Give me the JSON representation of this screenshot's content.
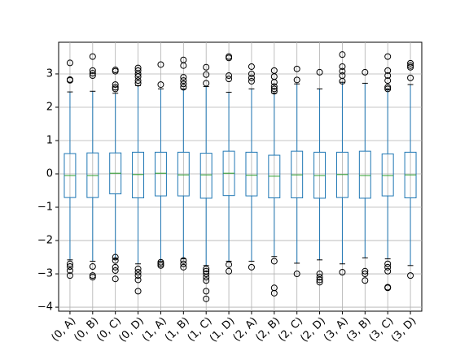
{
  "chart_data": {
    "type": "box",
    "box_color": "#1f77b4",
    "median_color": "#2ca02c",
    "grid": true,
    "categories": [
      "(0, A)",
      "(0, B)",
      "(0, C)",
      "(0, D)",
      "(1, A)",
      "(1, B)",
      "(1, C)",
      "(1, D)",
      "(2, A)",
      "(2, B)",
      "(2, C)",
      "(2, D)",
      "(3, A)",
      "(3, B)",
      "(3, C)",
      "(3, D)"
    ],
    "boxes": [
      {
        "whislo": -2.58,
        "q1": -0.71,
        "med": -0.05,
        "q3": 0.61,
        "whishi": 2.46,
        "fliers": [
          3.33,
          2.83,
          2.81,
          -2.7,
          -2.78,
          -2.9,
          -3.05
        ]
      },
      {
        "whislo": -2.62,
        "q1": -0.71,
        "med": -0.05,
        "q3": 0.63,
        "whishi": 2.48,
        "fliers": [
          3.52,
          3.1,
          3.02,
          2.95,
          -2.78,
          -3.05,
          -3.1
        ]
      },
      {
        "whislo": -2.55,
        "q1": -0.6,
        "med": 0.02,
        "q3": 0.63,
        "whishi": 2.42,
        "fliers": [
          3.12,
          3.08,
          2.68,
          2.6,
          2.55,
          -2.5,
          -2.6,
          -2.8,
          -2.9,
          -3.15
        ]
      },
      {
        "whislo": -2.7,
        "q1": -0.72,
        "med": -0.02,
        "q3": 0.65,
        "whishi": 2.65,
        "fliers": [
          3.18,
          3.1,
          3.0,
          2.92,
          2.8,
          2.72,
          -2.85,
          -2.95,
          -3.05,
          -3.18,
          -3.52
        ]
      },
      {
        "whislo": -2.62,
        "q1": -0.66,
        "med": 0.02,
        "q3": 0.65,
        "whishi": 2.55,
        "fliers": [
          3.28,
          2.68,
          -2.65,
          -2.7,
          -2.75
        ]
      },
      {
        "whislo": -2.55,
        "q1": -0.66,
        "med": -0.03,
        "q3": 0.65,
        "whishi": 2.55,
        "fliers": [
          3.42,
          3.25,
          2.9,
          2.8,
          2.7,
          2.6,
          -2.6,
          -2.7,
          -2.8
        ]
      },
      {
        "whislo": -2.75,
        "q1": -0.73,
        "med": -0.03,
        "q3": 0.62,
        "whishi": 2.62,
        "fliers": [
          3.2,
          2.98,
          2.72,
          -2.85,
          -2.92,
          -3.0,
          -3.1,
          -3.2,
          -3.52,
          -3.75
        ]
      },
      {
        "whislo": -2.62,
        "q1": -0.65,
        "med": 0.02,
        "q3": 0.68,
        "whishi": 2.45,
        "fliers": [
          3.52,
          3.48,
          2.95,
          2.85,
          -2.72,
          -2.92
        ]
      },
      {
        "whislo": -2.62,
        "q1": -0.66,
        "med": -0.04,
        "q3": 0.65,
        "whishi": 2.55,
        "fliers": [
          3.22,
          3.0,
          2.88,
          2.78,
          -2.8
        ]
      },
      {
        "whislo": -2.48,
        "q1": -0.72,
        "med": -0.07,
        "q3": 0.56,
        "whishi": 2.42,
        "fliers": [
          3.1,
          2.92,
          2.75,
          2.62,
          2.55,
          2.48,
          -2.62,
          -3.42,
          -3.58
        ]
      },
      {
        "whislo": -2.68,
        "q1": -0.72,
        "med": -0.03,
        "q3": 0.68,
        "whishi": 2.7,
        "fliers": [
          3.15,
          2.82,
          -3.0
        ]
      },
      {
        "whislo": -2.58,
        "q1": -0.73,
        "med": -0.05,
        "q3": 0.65,
        "whishi": 2.55,
        "fliers": [
          3.05,
          -3.0,
          -3.1,
          -3.18,
          -3.25
        ]
      },
      {
        "whislo": -2.7,
        "q1": -0.71,
        "med": -0.02,
        "q3": 0.65,
        "whishi": 2.75,
        "fliers": [
          3.58,
          3.22,
          3.08,
          2.95,
          2.78,
          -2.95
        ]
      },
      {
        "whislo": -2.52,
        "q1": -0.73,
        "med": -0.05,
        "q3": 0.68,
        "whishi": 2.72,
        "fliers": [
          3.05,
          -2.92,
          -3.0,
          -3.2
        ]
      },
      {
        "whislo": -2.55,
        "q1": -0.66,
        "med": -0.05,
        "q3": 0.6,
        "whishi": 2.55,
        "fliers": [
          3.52,
          3.1,
          2.95,
          2.8,
          2.6,
          2.55,
          -2.7,
          -2.8,
          -2.92,
          -3.4,
          -3.42
        ]
      },
      {
        "whislo": -2.75,
        "q1": -0.72,
        "med": -0.03,
        "q3": 0.65,
        "whishi": 2.68,
        "fliers": [
          3.32,
          3.25,
          3.2,
          2.88,
          -3.05
        ]
      }
    ],
    "ylim": [
      -4.12,
      3.95
    ],
    "yticks": [
      {
        "value": -4,
        "label": "−4"
      },
      {
        "value": -3,
        "label": "−3"
      },
      {
        "value": -2,
        "label": "−2"
      },
      {
        "value": -1,
        "label": "−1"
      },
      0,
      1,
      2,
      3
    ]
  }
}
